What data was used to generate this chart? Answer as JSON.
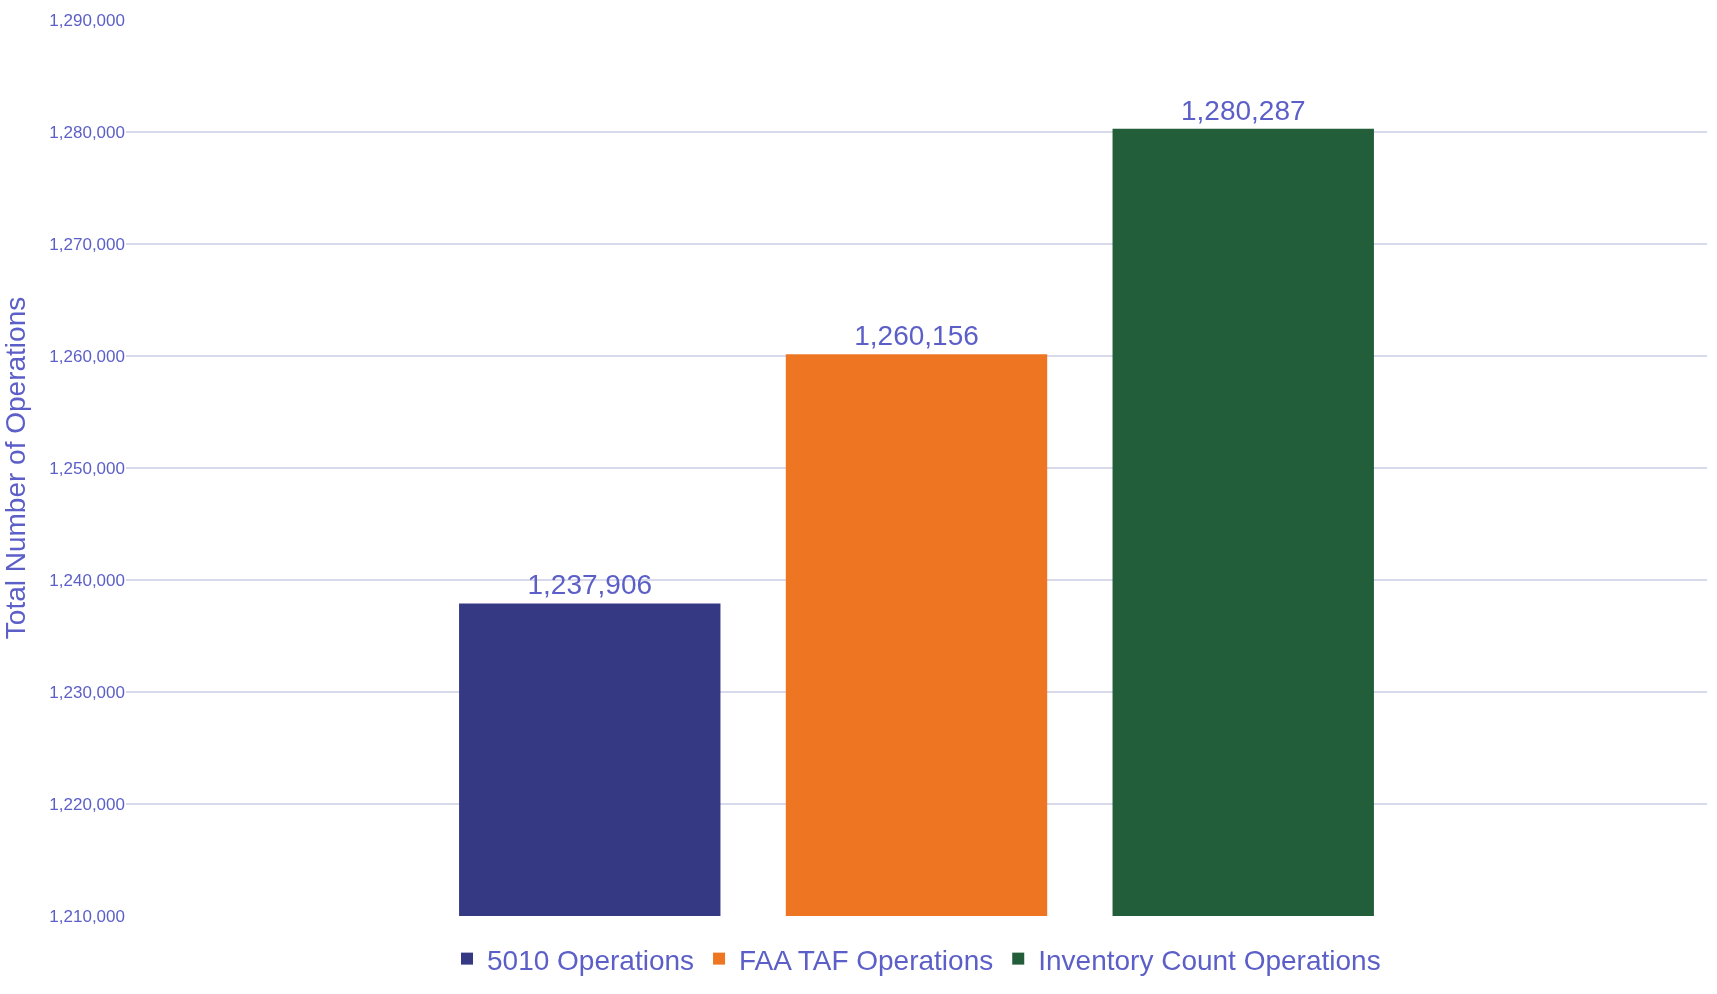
{
  "chart_data": {
    "type": "bar",
    "ylabel": "Total Number of Operations",
    "categories": [
      null
    ],
    "series": [
      {
        "name": "5010 Operations",
        "color": "#353882",
        "values": [
          1237906
        ],
        "value_labels": [
          "1,237,906"
        ]
      },
      {
        "name": "FAA TAF Operations",
        "color": "#ee7623",
        "values": [
          1260156
        ],
        "value_labels": [
          "1,260,156"
        ]
      },
      {
        "name": "Inventory Count Operations",
        "color": "#225e3a",
        "values": [
          1280287
        ],
        "value_labels": [
          "1,280,287"
        ]
      }
    ],
    "ylim": [
      1210000,
      1290000
    ],
    "yticks": [
      {
        "value": 1210000,
        "label": "1,210,000"
      },
      {
        "value": 1220000,
        "label": "1,220,000"
      },
      {
        "value": 1230000,
        "label": "1,230,000"
      },
      {
        "value": 1240000,
        "label": "1,240,000"
      },
      {
        "value": 1250000,
        "label": "1,250,000"
      },
      {
        "value": 1260000,
        "label": "1,260,000"
      },
      {
        "value": 1270000,
        "label": "1,270,000"
      },
      {
        "value": 1280000,
        "label": "1,280,000"
      },
      {
        "value": 1290000,
        "label": "1,290,000"
      }
    ],
    "grid": "y",
    "legend": "bottom",
    "tick_labels": "y"
  }
}
